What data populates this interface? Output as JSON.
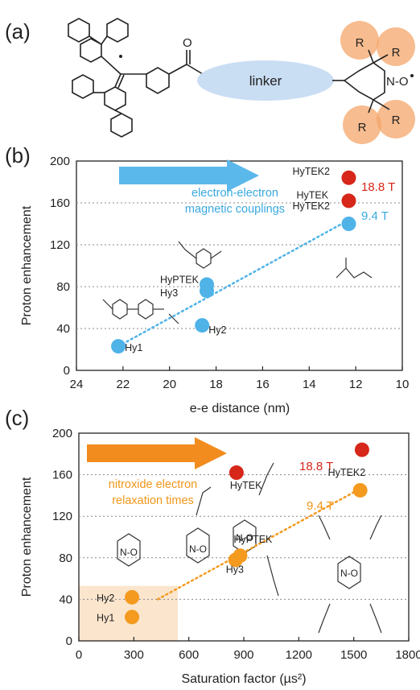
{
  "panel_a": {
    "label": "(a)",
    "linker_label": "linker",
    "carbonyl_label": "O",
    "nitroxide_label": "N-O",
    "r_labels": [
      "R",
      "R",
      "R",
      "R"
    ]
  },
  "colors": {
    "blue_arrow": "#5bb8ea",
    "blue_text": "#3aa9e0",
    "orange_arrow": "#f28c1e",
    "orange_text": "#f0961a",
    "red": "#d7261a",
    "blue_point": "#4fb3e8",
    "orange_point": "#f39a1f",
    "linker_fill": "#c9ddf3",
    "r_circle": "#f4a66a",
    "highlight_box": "#fbe5cd",
    "gridline": "#888888"
  },
  "chart_data": [
    {
      "panel_label": "(b)",
      "type": "scatter",
      "xlabel": "e-e distance (nm)",
      "ylabel": "Proton enhancement",
      "xlim": [
        24,
        10
      ],
      "ylim": [
        0,
        200
      ],
      "x_reversed": true,
      "xticks": [
        "24",
        "22",
        "20",
        "18",
        "16",
        "14",
        "12",
        "10"
      ],
      "yticks": [
        "0",
        "40",
        "80",
        "120",
        "160",
        "200"
      ],
      "grid": "horizontal-dotted",
      "arrow_caption": [
        "electron-electron",
        "magnetic couplings"
      ],
      "field_labels": [
        "18.8 T",
        "9.4 T"
      ],
      "points": [
        {
          "label": "Hy1",
          "x": 22.2,
          "y": 23,
          "series": "9.4 T"
        },
        {
          "label": "Hy2",
          "x": 18.6,
          "y": 43,
          "series": "9.4 T"
        },
        {
          "label": "Hy3",
          "x": 18.4,
          "y": 76,
          "series": "9.4 T"
        },
        {
          "label": "HyPTEK",
          "x": 18.4,
          "y": 82,
          "series": "9.4 T"
        },
        {
          "label": "HyTEK2",
          "x": 12.3,
          "y": 140,
          "series": "9.4 T"
        },
        {
          "label": "HyTEK",
          "x": 12.3,
          "y": 162,
          "series": "18.8 T"
        },
        {
          "label": "HyTEK2",
          "x": 12.3,
          "y": 184,
          "series": "18.8 T"
        }
      ],
      "trend": {
        "from": [
          22.2,
          23
        ],
        "to": [
          12.6,
          140
        ]
      }
    },
    {
      "panel_label": "(c)",
      "type": "scatter",
      "xlabel": "Saturation factor (µs²)",
      "ylabel": "Proton enhancement",
      "xlim": [
        0,
        1800
      ],
      "ylim": [
        0,
        200
      ],
      "xticks": [
        "0",
        "300",
        "600",
        "900",
        "1200",
        "1500",
        "1800"
      ],
      "yticks": [
        "0",
        "40",
        "80",
        "120",
        "160",
        "200"
      ],
      "grid": "horizontal-dotted",
      "arrow_caption": [
        "nitroxide electron",
        "relaxation times"
      ],
      "field_labels": [
        "18.8 T",
        "9.4 T"
      ],
      "nitroxide_label": "N-O",
      "points": [
        {
          "label": "Hy1",
          "x": 290,
          "y": 23,
          "series": "9.4 T"
        },
        {
          "label": "Hy2",
          "x": 290,
          "y": 42,
          "series": "9.4 T"
        },
        {
          "label": "Hy3",
          "x": 855,
          "y": 78,
          "series": "9.4 T"
        },
        {
          "label": "HyPTEK",
          "x": 880,
          "y": 82,
          "series": "9.4 T"
        },
        {
          "label": "HyTEK2",
          "x": 1535,
          "y": 145,
          "series": "9.4 T"
        },
        {
          "label": "HyTEK",
          "x": 860,
          "y": 162,
          "series": "18.8 T"
        },
        {
          "label": "",
          "x": 1545,
          "y": 184,
          "series": "18.8 T"
        }
      ],
      "trend": {
        "from": [
          430,
          40
        ],
        "to": [
          1520,
          145
        ]
      },
      "highlight": {
        "x": [
          0,
          540
        ],
        "y": [
          0,
          53
        ]
      }
    }
  ]
}
